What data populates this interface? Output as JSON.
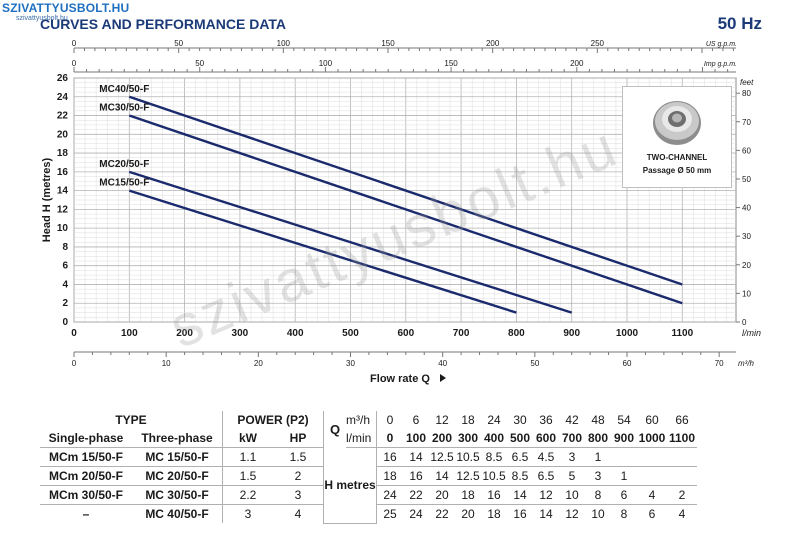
{
  "logo": {
    "brand": "SZIVATTYUSBOLT.HU",
    "site": "szivattyusbolt.hu"
  },
  "title": "CURVES AND PERFORMANCE DATA",
  "frequency": "50 Hz",
  "watermark": "szivattyusbolt.hu",
  "inset": {
    "line1": "TWO-CHANNEL",
    "line2": "Passage Ø 50 mm"
  },
  "chart_data": {
    "type": "line",
    "xlabel": "Flow rate Q",
    "ylabel": "Head H (metres)",
    "x_unit": "l/min",
    "x": {
      "ticks": [
        0,
        100,
        200,
        300,
        400,
        500,
        600,
        700,
        800,
        900,
        1000,
        1100
      ],
      "lim": [
        0,
        1200
      ]
    },
    "y": {
      "ticks": [
        0,
        2,
        4,
        6,
        8,
        10,
        12,
        14,
        16,
        18,
        20,
        22,
        24,
        26
      ],
      "lim": [
        0,
        26
      ]
    },
    "y_right": {
      "unit": "feet",
      "ticks": [
        0,
        10,
        20,
        30,
        40,
        50,
        60,
        70,
        80
      ]
    },
    "x_top_usgpm": {
      "unit": "US g.p.m.",
      "ticks": [
        0,
        50,
        100,
        150,
        200,
        250
      ]
    },
    "x_top_impgpm": {
      "unit": "Imp g.p.m.",
      "ticks": [
        0,
        50,
        100,
        150,
        200
      ]
    },
    "x_bottom_m3h": {
      "unit": "m³/h",
      "ticks": [
        0,
        10,
        20,
        30,
        40,
        50,
        60,
        70
      ]
    },
    "grid": true,
    "series": [
      {
        "name": "MC40/50-F",
        "x": [
          100,
          1100
        ],
        "y": [
          24,
          4
        ],
        "color": "#1a2a6c"
      },
      {
        "name": "MC30/50-F",
        "x": [
          100,
          1100
        ],
        "y": [
          22,
          2
        ],
        "color": "#1a2a6c"
      },
      {
        "name": "MC20/50-F",
        "x": [
          100,
          900
        ],
        "y": [
          16,
          1
        ],
        "color": "#1a2a6c"
      },
      {
        "name": "MC15/50-F",
        "x": [
          100,
          800
        ],
        "y": [
          14,
          1
        ],
        "color": "#1a2a6c"
      }
    ]
  },
  "table": {
    "type_header": "TYPE",
    "power_header": "POWER (P2)",
    "q_label": "Q",
    "single_phase": "Single-phase",
    "three_phase": "Three-phase",
    "kw": "kW",
    "hp": "HP",
    "m3h": "m³/h",
    "lmin": "l/min",
    "h_metres": "H metres",
    "q_m3h": [
      "0",
      "6",
      "12",
      "18",
      "24",
      "30",
      "36",
      "42",
      "48",
      "54",
      "60",
      "66"
    ],
    "q_lmin": [
      "0",
      "100",
      "200",
      "300",
      "400",
      "500",
      "600",
      "700",
      "800",
      "900",
      "1000",
      "1100"
    ],
    "rows": [
      {
        "single": "MCm 15/50-F",
        "three": "MC 15/50-F",
        "kw": "1.1",
        "hp": "1.5",
        "h": [
          "16",
          "14",
          "12.5",
          "10.5",
          "8.5",
          "6.5",
          "4.5",
          "3",
          "1",
          "",
          "",
          ""
        ]
      },
      {
        "single": "MCm 20/50-F",
        "three": "MC 20/50-F",
        "kw": "1.5",
        "hp": "2",
        "h": [
          "18",
          "16",
          "14",
          "12.5",
          "10.5",
          "8.5",
          "6.5",
          "5",
          "3",
          "1",
          "",
          ""
        ]
      },
      {
        "single": "MCm 30/50-F",
        "three": "MC 30/50-F",
        "kw": "2.2",
        "hp": "3",
        "h": [
          "24",
          "22",
          "20",
          "18",
          "16",
          "14",
          "12",
          "10",
          "8",
          "6",
          "4",
          "2"
        ]
      },
      {
        "single": "–",
        "three": "MC 40/50-F",
        "kw": "3",
        "hp": "4",
        "h": [
          "25",
          "24",
          "22",
          "20",
          "18",
          "16",
          "14",
          "12",
          "10",
          "8",
          "6",
          "4"
        ]
      }
    ]
  }
}
